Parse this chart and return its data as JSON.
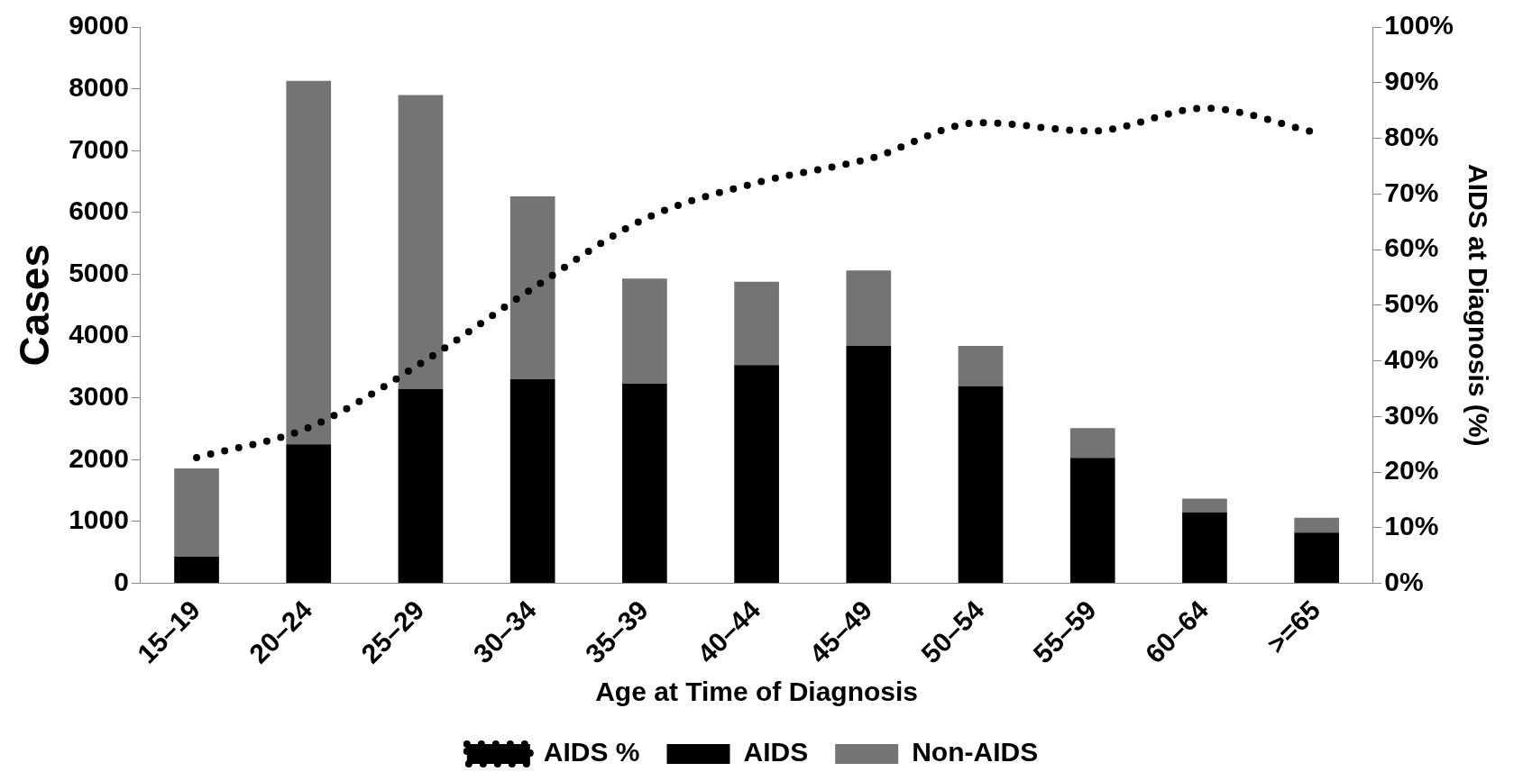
{
  "chart_data": {
    "type": "bar",
    "stacked": true,
    "xlabel": "Age at Time of Diagnosis",
    "ylabel": "Cases",
    "y2label": "AIDS at Diagnosis (%)",
    "categories": [
      "15–19",
      "20–24",
      "25–29",
      "30–34",
      "35–39",
      "40–44",
      "45–49",
      "50–54",
      "55–59",
      "60–64",
      ">=65"
    ],
    "series": [
      {
        "name": "AIDS",
        "color": "#000000",
        "values": [
          430,
          2250,
          3140,
          3300,
          3230,
          3530,
          3840,
          3190,
          2030,
          1150,
          820
        ]
      },
      {
        "name": "Non-AIDS",
        "color": "#747474",
        "values": [
          1430,
          5880,
          4760,
          2960,
          1700,
          1350,
          1220,
          650,
          480,
          220,
          240
        ]
      },
      {
        "name": "AIDS %",
        "type": "line",
        "axis": "y2",
        "line_style": "dotted",
        "marker": "none",
        "color": "#000000",
        "values": [
          22.6,
          28,
          39.5,
          53,
          65.5,
          72,
          76.3,
          82.8,
          81.3,
          85.4,
          81
        ]
      }
    ],
    "ylim": [
      0,
      9000
    ],
    "yticks": [
      0,
      1000,
      2000,
      3000,
      4000,
      5000,
      6000,
      7000,
      8000,
      9000
    ],
    "y2lim": [
      0,
      100
    ],
    "y2ticks": [
      {
        "value": 0,
        "label": "0%"
      },
      {
        "value": 10,
        "label": "10%"
      },
      {
        "value": 20,
        "label": "20%"
      },
      {
        "value": 30,
        "label": "30%"
      },
      {
        "value": 40,
        "label": "40%"
      },
      {
        "value": 50,
        "label": "50%"
      },
      {
        "value": 60,
        "label": "60%"
      },
      {
        "value": 70,
        "label": "70%"
      },
      {
        "value": 80,
        "label": "80%"
      },
      {
        "value": 90,
        "label": "90%"
      },
      {
        "value": 100,
        "label": "100%"
      }
    ],
    "grid": false,
    "legend": "bottom"
  }
}
